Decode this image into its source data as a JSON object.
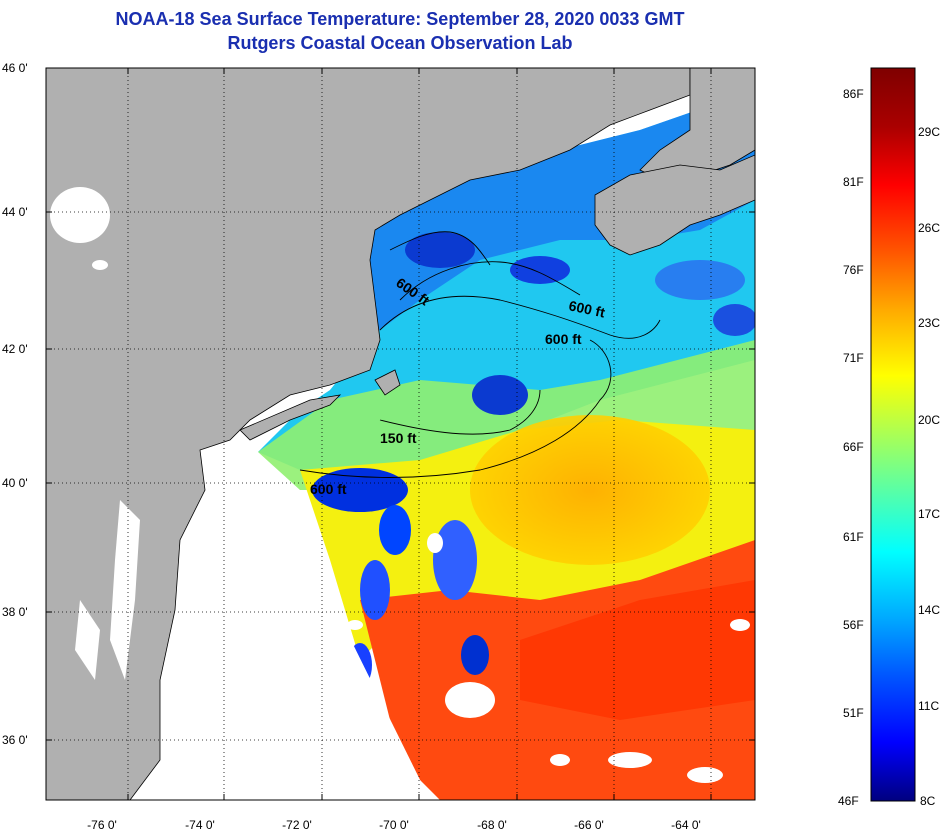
{
  "title": {
    "line1": "NOAA-18 Sea Surface Temperature:  September 28, 2020 0033 GMT",
    "line2": "Rutgers Coastal Ocean Observation Lab"
  },
  "axes": {
    "lat_labels": [
      "46 0'",
      "44 0'",
      "42 0'",
      "40 0'",
      "38 0'",
      "36 0'"
    ],
    "lon_labels": [
      "-76 0'",
      "-74 0'",
      "-72 0'",
      "-70 0'",
      "-68 0'",
      "-66 0'",
      "-64 0'"
    ]
  },
  "contours": {
    "labels": [
      "600 ft",
      "600 ft",
      "600 ft",
      "150 ft",
      "600 ft"
    ]
  },
  "colorbar": {
    "fahrenheit": [
      "86F",
      "81F",
      "76F",
      "71F",
      "66F",
      "61F",
      "56F",
      "51F",
      "46F"
    ],
    "celsius": [
      "29C",
      "26C",
      "23C",
      "20C",
      "17C",
      "14C",
      "11C",
      "8C"
    ],
    "gradient": [
      "#00007f",
      "#0000ff",
      "#0055ff",
      "#00aaff",
      "#00ffff",
      "#55ffaa",
      "#aaff55",
      "#ffff00",
      "#ffaa00",
      "#ff5500",
      "#ff0000",
      "#aa0000",
      "#7f0000"
    ]
  },
  "colors": {
    "land": "#b0b0b0",
    "title": "#1a2fb0",
    "nodata": "#ffffff"
  }
}
